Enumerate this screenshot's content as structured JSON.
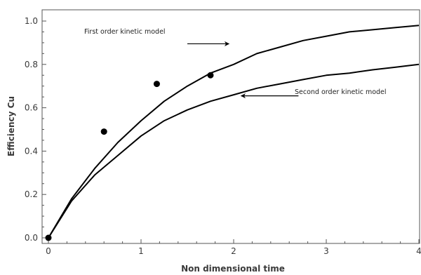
{
  "chart_data": {
    "type": "line",
    "title": "",
    "xlabel": "Non dimensional time",
    "ylabel": "Efficiency Cu",
    "xlim": [
      0,
      4
    ],
    "ylim": [
      0,
      1.05
    ],
    "x_ticks": [
      "0",
      "1",
      "2",
      "3",
      "4"
    ],
    "y_ticks": [
      "0.0",
      "0.2",
      "0.4",
      "0.6",
      "0.8",
      "1.0"
    ],
    "grid": false,
    "series": [
      {
        "model": "first-order",
        "x": [
          0,
          0.25,
          0.5,
          0.75,
          1.0,
          1.25,
          1.5,
          1.75,
          2.0,
          2.25,
          2.5,
          2.75,
          3.0,
          3.25,
          3.5,
          3.75,
          4.0
        ],
        "y": [
          0,
          0.18,
          0.32,
          0.44,
          0.54,
          0.63,
          0.7,
          0.76,
          0.8,
          0.85,
          0.88,
          0.91,
          0.93,
          0.95,
          0.96,
          0.97,
          0.98
        ]
      },
      {
        "model": "second-order",
        "x": [
          0,
          0.25,
          0.5,
          0.75,
          1.0,
          1.25,
          1.5,
          1.75,
          2.0,
          2.25,
          2.5,
          2.75,
          3.0,
          3.25,
          3.5,
          3.75,
          4.0
        ],
        "y": [
          0,
          0.17,
          0.29,
          0.38,
          0.47,
          0.54,
          0.59,
          0.63,
          0.66,
          0.69,
          0.71,
          0.73,
          0.75,
          0.76,
          0.775,
          0.787,
          0.8
        ]
      }
    ],
    "points": {
      "x": [
        0,
        0.6,
        1.17,
        1.75
      ],
      "y": [
        0,
        0.49,
        0.71,
        0.75
      ]
    },
    "annotations": [
      {
        "text": "First order kinetic model",
        "arrow_from": [
          1.5,
          0.895
        ],
        "arrow_to": [
          1.95,
          0.895
        ]
      },
      {
        "text": "Second order kinetic model",
        "arrow_from": [
          2.7,
          0.655
        ],
        "arrow_to": [
          2.08,
          0.655
        ]
      }
    ],
    "colors": {
      "line": "#000000",
      "axis": "#555555",
      "text": "#3a3a3a"
    }
  }
}
